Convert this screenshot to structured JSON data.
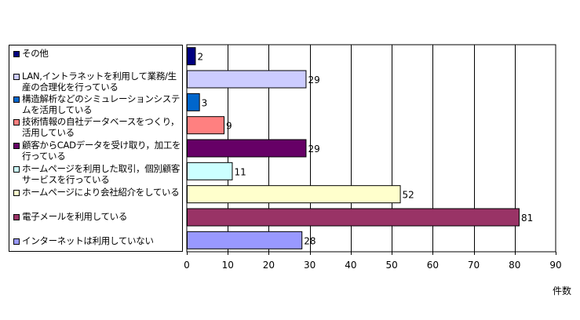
{
  "chart_data": {
    "type": "bar",
    "orientation": "horizontal",
    "categories": [
      "その他",
      "LAN,イントラネットを利用して業務/生産の合理化を行っている",
      "構造解析などのシミュレーションシステムを活用している",
      "技術情報の自社データベースをつくり，活用している",
      "顧客からCADデータを受け取り，加工を行っている",
      "ホームページを利用した取引，個別顧客サービスを行っている",
      "ホームページにより会社紹介をしている",
      "電子メールを利用している",
      "インターネットは利用していない"
    ],
    "values": [
      2,
      29,
      3,
      9,
      29,
      11,
      52,
      81,
      28
    ],
    "colors": [
      "#000080",
      "#ccccff",
      "#0066cc",
      "#ff8080",
      "#660066",
      "#ccffff",
      "#ffffcc",
      "#993366",
      "#9999ff"
    ],
    "xlim": [
      0,
      90
    ],
    "xticks": [
      0,
      10,
      20,
      30,
      40,
      50,
      60,
      70,
      80,
      90
    ],
    "xlabel": "件数",
    "grid": true,
    "legend_position": "left"
  },
  "legend": [
    {
      "text": "その他"
    },
    {
      "text": "LAN,イントラネットを利用して業務/生産の合理化を行っている"
    },
    {
      "text": "構造解析などのシミュレーションシステムを活用している"
    },
    {
      "text": "技術情報の自社データベースをつくり，活用している"
    },
    {
      "text": "顧客からCADデータを受け取り，加工を行っている"
    },
    {
      "text": "ホームページを利用した取引，個別顧客サービスを行っている"
    },
    {
      "text": "ホームページにより会社紹介をしている"
    },
    {
      "text": "電子メールを利用している"
    },
    {
      "text": "インターネットは利用していない"
    }
  ]
}
